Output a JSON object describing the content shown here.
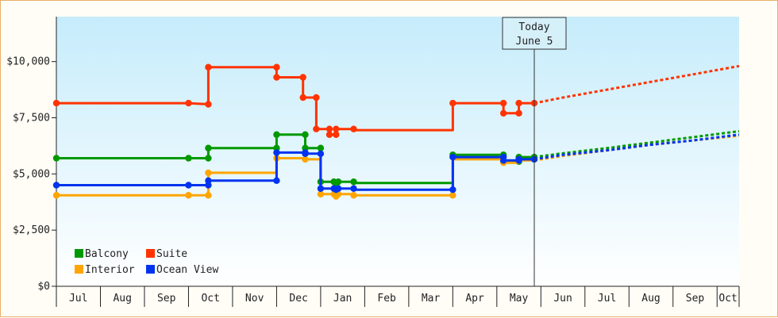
{
  "chart_data": {
    "type": "line",
    "y_ticks": [
      0,
      2500,
      5000,
      7500,
      10000
    ],
    "y_tick_labels": [
      "$0",
      "$2,500",
      "$5,000",
      "$7,500",
      "$10,000"
    ],
    "ylim": [
      0,
      12000
    ],
    "x_ticks": [
      "Jul",
      "Aug",
      "Sep",
      "Oct",
      "Nov",
      "Dec",
      "Jan",
      "Feb",
      "Mar",
      "Apr",
      "May",
      "Jun",
      "Jul",
      "Aug",
      "Sep",
      "Oct"
    ],
    "xlim_months": [
      0,
      15.5
    ],
    "grid": false,
    "legend_position": "bottom-left",
    "today": {
      "line1": "Today",
      "line2": "June 5",
      "x": 10.85
    },
    "series": [
      {
        "name": "Balcony",
        "color": "#009900",
        "points": [
          [
            0,
            5700
          ],
          [
            3,
            5700
          ],
          [
            3.45,
            5700
          ],
          [
            3.45,
            6150
          ],
          [
            5,
            6150
          ],
          [
            5,
            6750
          ],
          [
            5.65,
            6750
          ],
          [
            5.65,
            6150
          ],
          [
            6,
            6150
          ],
          [
            6,
            4650
          ],
          [
            6.3,
            4650
          ],
          [
            6.35,
            4500
          ],
          [
            6.4,
            4650
          ],
          [
            6.75,
            4650
          ],
          [
            6.75,
            4600
          ],
          [
            9,
            4600
          ],
          [
            9,
            5850
          ],
          [
            10.15,
            5850
          ],
          [
            10.15,
            5550
          ],
          [
            10.5,
            5550
          ],
          [
            10.5,
            5750
          ],
          [
            10.85,
            5750
          ]
        ],
        "markers": [
          [
            0,
            5700
          ],
          [
            3,
            5700
          ],
          [
            3.45,
            5700
          ],
          [
            3.45,
            6150
          ],
          [
            5,
            6150
          ],
          [
            5,
            6750
          ],
          [
            5.65,
            6750
          ],
          [
            5.65,
            6150
          ],
          [
            6,
            6150
          ],
          [
            6,
            4650
          ],
          [
            6.3,
            4650
          ],
          [
            6.35,
            4500
          ],
          [
            6.4,
            4650
          ],
          [
            6.75,
            4650
          ],
          [
            9,
            5850
          ],
          [
            10.15,
            5850
          ],
          [
            10.15,
            5550
          ],
          [
            10.5,
            5550
          ],
          [
            10.5,
            5750
          ],
          [
            10.85,
            5750
          ]
        ],
        "forecast": [
          [
            10.85,
            5750
          ],
          [
            11.5,
            5920
          ],
          [
            12.5,
            6150
          ],
          [
            13.5,
            6400
          ],
          [
            14.5,
            6650
          ],
          [
            15.5,
            6900
          ]
        ]
      },
      {
        "name": "Suite",
        "color": "#ff3300",
        "points": [
          [
            0,
            8150
          ],
          [
            3,
            8150
          ],
          [
            3.45,
            8100
          ],
          [
            3.45,
            9750
          ],
          [
            5,
            9750
          ],
          [
            5,
            9300
          ],
          [
            5.6,
            9300
          ],
          [
            5.6,
            8400
          ],
          [
            5.9,
            8400
          ],
          [
            5.9,
            7000
          ],
          [
            6.2,
            7000
          ],
          [
            6.2,
            6750
          ],
          [
            6.35,
            6750
          ],
          [
            6.35,
            7000
          ],
          [
            6.75,
            7000
          ],
          [
            6.75,
            6950
          ],
          [
            9,
            6950
          ],
          [
            9,
            8150
          ],
          [
            10.15,
            8150
          ],
          [
            10.15,
            7700
          ],
          [
            10.5,
            7700
          ],
          [
            10.5,
            8150
          ],
          [
            10.85,
            8150
          ]
        ],
        "markers": [
          [
            0,
            8150
          ],
          [
            3,
            8150
          ],
          [
            3.45,
            8100
          ],
          [
            3.45,
            9750
          ],
          [
            5,
            9750
          ],
          [
            5,
            9300
          ],
          [
            5.6,
            9300
          ],
          [
            5.6,
            8400
          ],
          [
            5.9,
            8400
          ],
          [
            5.9,
            7000
          ],
          [
            6.2,
            7000
          ],
          [
            6.2,
            6750
          ],
          [
            6.35,
            6750
          ],
          [
            6.35,
            7000
          ],
          [
            6.75,
            7000
          ],
          [
            9,
            8150
          ],
          [
            10.15,
            8150
          ],
          [
            10.15,
            7700
          ],
          [
            10.5,
            7700
          ],
          [
            10.5,
            8150
          ],
          [
            10.85,
            8150
          ]
        ],
        "forecast": [
          [
            10.85,
            8150
          ],
          [
            11.5,
            8400
          ],
          [
            12.5,
            8750
          ],
          [
            13.5,
            9100
          ],
          [
            14.5,
            9450
          ],
          [
            15.5,
            9800
          ]
        ]
      },
      {
        "name": "Interior",
        "color": "#ffa500",
        "points": [
          [
            0,
            4050
          ],
          [
            3,
            4050
          ],
          [
            3.45,
            4050
          ],
          [
            3.45,
            5050
          ],
          [
            5,
            5050
          ],
          [
            5,
            5700
          ],
          [
            5.6,
            5700
          ],
          [
            5.6,
            5650
          ],
          [
            6,
            5650
          ],
          [
            6,
            4100
          ],
          [
            6.3,
            4100
          ],
          [
            6.3,
            4000
          ],
          [
            6.4,
            4100
          ],
          [
            6.75,
            4100
          ],
          [
            6.75,
            4050
          ],
          [
            9,
            4050
          ],
          [
            9,
            5650
          ],
          [
            10.15,
            5650
          ],
          [
            10.15,
            5500
          ],
          [
            10.5,
            5500
          ],
          [
            10.5,
            5600
          ],
          [
            10.85,
            5600
          ]
        ],
        "markers": [
          [
            0,
            4050
          ],
          [
            3,
            4050
          ],
          [
            3.45,
            4050
          ],
          [
            3.45,
            5050
          ],
          [
            5,
            5700
          ],
          [
            5.65,
            5650
          ],
          [
            6,
            4100
          ],
          [
            6.3,
            4100
          ],
          [
            6.35,
            4000
          ],
          [
            6.4,
            4100
          ],
          [
            6.75,
            4050
          ],
          [
            9,
            4050
          ],
          [
            10.15,
            5500
          ],
          [
            10.5,
            5600
          ]
        ],
        "forecast": [
          [
            10.85,
            5600
          ],
          [
            11.5,
            5800
          ],
          [
            12.5,
            6050
          ],
          [
            13.5,
            6300
          ],
          [
            14.5,
            6500
          ],
          [
            15.5,
            6700
          ]
        ]
      },
      {
        "name": "Ocean View",
        "color": "#0033ee",
        "points": [
          [
            0,
            4500
          ],
          [
            3,
            4500
          ],
          [
            3.45,
            4500
          ],
          [
            3.45,
            4700
          ],
          [
            5,
            4700
          ],
          [
            5,
            5950
          ],
          [
            5.65,
            5950
          ],
          [
            5.65,
            5900
          ],
          [
            6,
            5900
          ],
          [
            6,
            4350
          ],
          [
            6.3,
            4350
          ],
          [
            6.3,
            4300
          ],
          [
            6.4,
            4350
          ],
          [
            6.75,
            4350
          ],
          [
            6.75,
            4300
          ],
          [
            9,
            4300
          ],
          [
            9,
            5750
          ],
          [
            10.15,
            5750
          ],
          [
            10.15,
            5600
          ],
          [
            10.5,
            5600
          ],
          [
            10.5,
            5650
          ],
          [
            10.85,
            5650
          ]
        ],
        "markers": [
          [
            0,
            4500
          ],
          [
            3,
            4500
          ],
          [
            3.45,
            4500
          ],
          [
            3.45,
            4700
          ],
          [
            5,
            4700
          ],
          [
            5,
            5950
          ],
          [
            5.65,
            5950
          ],
          [
            5.65,
            5900
          ],
          [
            6,
            5900
          ],
          [
            6,
            4350
          ],
          [
            6.3,
            4350
          ],
          [
            6.35,
            4300
          ],
          [
            6.4,
            4350
          ],
          [
            6.75,
            4350
          ],
          [
            9,
            4300
          ],
          [
            9,
            5750
          ],
          [
            10.15,
            5750
          ],
          [
            10.15,
            5600
          ],
          [
            10.5,
            5600
          ],
          [
            10.5,
            5650
          ],
          [
            10.85,
            5650
          ]
        ],
        "forecast": [
          [
            10.85,
            5650
          ],
          [
            11.5,
            5850
          ],
          [
            12.5,
            6050
          ],
          [
            13.5,
            6300
          ],
          [
            14.5,
            6500
          ],
          [
            15.5,
            6750
          ]
        ]
      }
    ]
  }
}
